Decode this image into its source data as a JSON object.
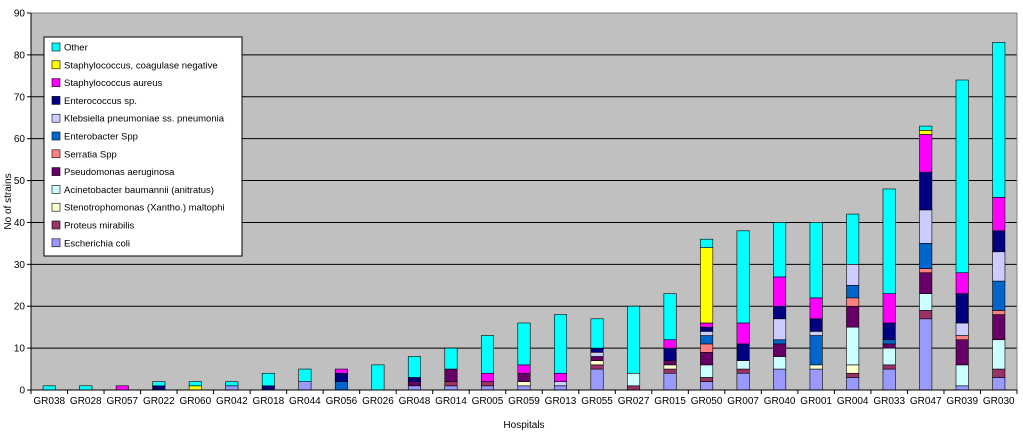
{
  "chart_data": {
    "type": "bar",
    "stacked": true,
    "title": "",
    "xlabel": "Hospitals",
    "ylabel": "No of strains",
    "ylim": [
      0,
      90
    ],
    "yticks": [
      0,
      10,
      20,
      30,
      40,
      50,
      60,
      70,
      80,
      90
    ],
    "grid": true,
    "legend_position": "top-left",
    "plot_background": "#C0C0C0",
    "categories": [
      "GR038",
      "GR028",
      "GR057",
      "GR022",
      "GR060",
      "GR042",
      "GR018",
      "GR044",
      "GR056",
      "GR026",
      "GR048",
      "GR014",
      "GR005",
      "GR059",
      "GR013",
      "GR055",
      "GR027",
      "GR015",
      "GR050",
      "GR007",
      "GR040",
      "GR001",
      "GR004",
      "GR033",
      "GR047",
      "GR039",
      "GR030"
    ],
    "series": [
      {
        "name": "Escherichia coli",
        "color": "#9999FF",
        "values": [
          0,
          0,
          0,
          0,
          0,
          1,
          0,
          2,
          0,
          0,
          1,
          1,
          1,
          1,
          1,
          5,
          0,
          4,
          2,
          4,
          5,
          5,
          3,
          5,
          17,
          1,
          3
        ]
      },
      {
        "name": "Proteus mirabilis",
        "color": "#993366",
        "values": [
          0,
          0,
          0,
          0,
          0,
          0,
          0,
          0,
          0,
          0,
          0,
          1,
          1,
          0,
          0,
          1,
          1,
          1,
          1,
          1,
          0,
          0,
          1,
          1,
          2,
          0,
          2
        ]
      },
      {
        "name": "Stenotrophomonas (Xantho.) maltophi",
        "color": "#FFFFCC",
        "values": [
          0,
          0,
          0,
          0,
          0,
          0,
          0,
          0,
          0,
          0,
          0,
          0,
          0,
          1,
          0,
          1,
          0,
          1,
          0,
          0,
          0,
          1,
          2,
          0,
          0,
          0,
          0
        ]
      },
      {
        "name": "Acinetobacter baumannii (anitratus)",
        "color": "#CCFFFF",
        "values": [
          0,
          0,
          0,
          0,
          0,
          0,
          0,
          0,
          0,
          0,
          0,
          0,
          0,
          0,
          0,
          0,
          3,
          0,
          3,
          2,
          3,
          0,
          9,
          4,
          4,
          5,
          7
        ]
      },
      {
        "name": "Pseudomonas aeruginosa",
        "color": "#660066",
        "values": [
          0,
          0,
          0,
          0,
          0,
          0,
          0,
          0,
          0,
          0,
          1,
          3,
          0,
          2,
          0,
          1,
          0,
          1,
          3,
          0,
          3,
          0,
          5,
          1,
          5,
          6,
          6
        ]
      },
      {
        "name": "Serratia Spp",
        "color": "#FF8080",
        "values": [
          0,
          0,
          0,
          0,
          0,
          0,
          0,
          0,
          0,
          0,
          0,
          0,
          0,
          0,
          0,
          0,
          0,
          0,
          2,
          0,
          0,
          0,
          2,
          0,
          1,
          1,
          1
        ]
      },
      {
        "name": "Enterobacter Spp",
        "color": "#0066CC",
        "values": [
          0,
          0,
          0,
          0,
          0,
          0,
          0,
          0,
          2,
          0,
          0,
          0,
          0,
          0,
          0,
          0,
          0,
          0,
          2,
          0,
          1,
          7,
          3,
          1,
          6,
          0,
          7
        ]
      },
      {
        "name": "Klebsiella pneumoniae ss. pneumonia",
        "color": "#CCCCFF",
        "values": [
          0,
          0,
          0,
          0,
          0,
          0,
          0,
          0,
          0,
          0,
          0,
          0,
          0,
          0,
          1,
          1,
          0,
          0,
          1,
          0,
          5,
          1,
          5,
          0,
          8,
          3,
          7
        ]
      },
      {
        "name": "Enterococcus sp.",
        "color": "#000080",
        "values": [
          0,
          0,
          0,
          1,
          0,
          0,
          1,
          0,
          2,
          0,
          1,
          0,
          0,
          0,
          0,
          1,
          0,
          3,
          1,
          4,
          3,
          3,
          0,
          4,
          9,
          7,
          5
        ]
      },
      {
        "name": "Staphylococcus aureus",
        "color": "#FF00FF",
        "values": [
          0,
          0,
          1,
          0,
          0,
          0,
          0,
          0,
          1,
          0,
          0,
          0,
          2,
          2,
          2,
          0,
          0,
          2,
          1,
          5,
          7,
          5,
          0,
          7,
          9,
          5,
          8
        ]
      },
      {
        "name": "Staphylococcus, coagulase negative",
        "color": "#FFFF00",
        "values": [
          0,
          0,
          0,
          0,
          1,
          0,
          0,
          0,
          0,
          0,
          0,
          0,
          0,
          0,
          0,
          0,
          0,
          0,
          18,
          0,
          0,
          0,
          0,
          0,
          1,
          0,
          0
        ]
      },
      {
        "name": "Other",
        "color": "#00FFFF",
        "values": [
          1,
          1,
          0,
          1,
          1,
          1,
          3,
          3,
          0,
          6,
          5,
          5,
          9,
          10,
          14,
          7,
          16,
          11,
          2,
          22,
          13,
          18,
          12,
          25,
          1,
          46,
          37
        ]
      }
    ]
  }
}
